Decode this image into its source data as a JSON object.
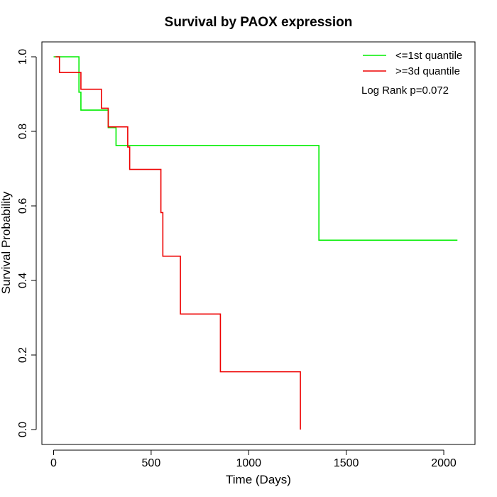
{
  "chart_data": {
    "type": "line",
    "title": "Survival by PAOX expression",
    "xlabel": "Time (Days)",
    "ylabel": "Survival Probability",
    "xlim": [
      -60,
      2160
    ],
    "ylim": [
      -0.04,
      1.04
    ],
    "xticks": [
      0,
      500,
      1000,
      1500,
      2000
    ],
    "yticks": [
      0.0,
      0.2,
      0.4,
      0.6,
      0.8,
      1.0
    ],
    "xtick_labels": [
      "0",
      "500",
      "1000",
      "1500",
      "2000"
    ],
    "ytick_labels": [
      "0.0",
      "0.2",
      "0.4",
      "0.6",
      "0.8",
      "1.0"
    ],
    "grid": false,
    "legend_position": "top-right",
    "annotation": "Log Rank p=0.072",
    "series": [
      {
        "name": "<=1st quantile",
        "color": "#00ee00",
        "step": true,
        "x": [
          0,
          130,
          140,
          160,
          280,
          320,
          1360,
          2070
        ],
        "y": [
          1.0,
          0.905,
          0.857,
          0.857,
          0.81,
          0.762,
          0.508,
          0.508
        ]
      },
      {
        "name": ">=3d quantile",
        "color": "#ee0000",
        "step": true,
        "x": [
          10,
          30,
          140,
          245,
          280,
          380,
          390,
          550,
          560,
          650,
          855,
          1265
        ],
        "y": [
          1.0,
          0.958,
          0.913,
          0.862,
          0.812,
          0.758,
          0.698,
          0.582,
          0.465,
          0.31,
          0.155,
          0.0
        ]
      }
    ]
  }
}
